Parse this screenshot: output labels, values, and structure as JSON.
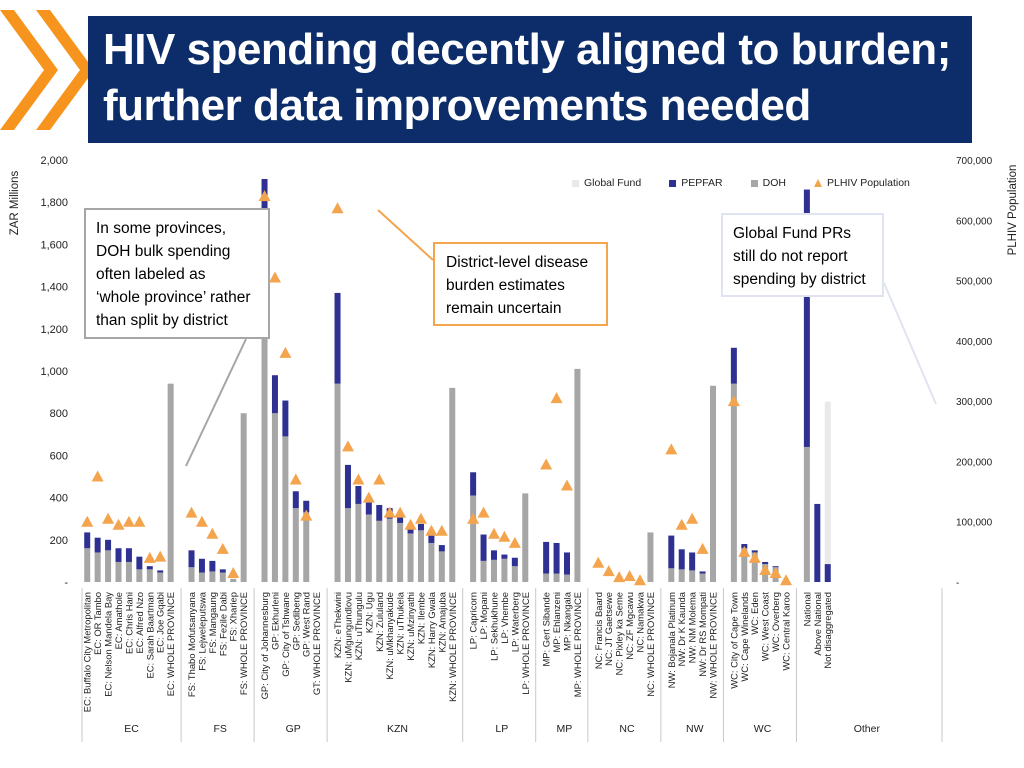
{
  "slide": {
    "title_line1": "HIV spending decently aligned to burden;",
    "title_line2": "further data improvements needed"
  },
  "colors": {
    "header": "#0c2d6a",
    "accent": "#f7941d",
    "global_fund": "#e9e9e9",
    "pepfar": "#2e3192",
    "doh": "#a6a6a6",
    "plhiv": "#f4a44d"
  },
  "callouts": {
    "doh_lines": [
      "In some provinces,",
      "DOH bulk spending",
      "often labeled as",
      "‘whole province’ rather",
      "than split by district"
    ],
    "district_lines": [
      "District-level disease",
      "burden estimates",
      "remain uncertain"
    ],
    "gf_lines": [
      "Global Fund PRs",
      "still do not report",
      "spending by district"
    ]
  },
  "chart_data": {
    "type": "bar",
    "stacked": true,
    "title": "",
    "ylabel": "ZAR Millions",
    "y2label": "PLHIV Population",
    "ylim": [
      0,
      2000
    ],
    "y2lim": [
      0,
      700000
    ],
    "yticks": [
      "-",
      "200",
      "400",
      "600",
      "800",
      "1,000",
      "1,200",
      "1,400",
      "1,600",
      "1,800",
      "2,000"
    ],
    "y2ticks": [
      "-",
      "100,000",
      "200,000",
      "300,000",
      "400,000",
      "500,000",
      "600,000",
      "700,000"
    ],
    "legend": [
      "Global Fund",
      "PEPFAR",
      "DOH",
      "PLHIV Population"
    ],
    "legend_position": "top-right",
    "groups": [
      {
        "name": "EC",
        "items": [
          {
            "label": "EC: Buffalo City Metropolitan",
            "doh": 160,
            "pepfar": 75,
            "gf": 0,
            "plhiv": 100000
          },
          {
            "label": "EC: OR Tambo",
            "doh": 140,
            "pepfar": 70,
            "gf": 0,
            "plhiv": 175000
          },
          {
            "label": "EC: Nelson Mandela Bay",
            "doh": 150,
            "pepfar": 50,
            "gf": 0,
            "plhiv": 105000
          },
          {
            "label": "EC: Amathole",
            "doh": 95,
            "pepfar": 65,
            "gf": 0,
            "plhiv": 95000
          },
          {
            "label": "EC: Chris Hani",
            "doh": 95,
            "pepfar": 65,
            "gf": 0,
            "plhiv": 100000
          },
          {
            "label": "EC: Alfred Nzo",
            "doh": 60,
            "pepfar": 60,
            "gf": 0,
            "plhiv": 100000
          },
          {
            "label": "EC: Sarah Baartman",
            "doh": 60,
            "pepfar": 15,
            "gf": 0,
            "plhiv": 40000
          },
          {
            "label": "EC: Joe Gqabi",
            "doh": 45,
            "pepfar": 10,
            "gf": 0,
            "plhiv": 42000
          },
          {
            "label": "EC: WHOLE PROVINCE",
            "doh": 940,
            "pepfar": 0,
            "gf": 0,
            "plhiv": null
          }
        ]
      },
      {
        "name": "FS",
        "items": [
          {
            "label": "FS: Thabo Mofutsanyana",
            "doh": 70,
            "pepfar": 80,
            "gf": 0,
            "plhiv": 115000
          },
          {
            "label": "FS: Lejweleputswa",
            "doh": 45,
            "pepfar": 65,
            "gf": 0,
            "plhiv": 100000
          },
          {
            "label": "FS: Mangaung",
            "doh": 50,
            "pepfar": 50,
            "gf": 0,
            "plhiv": 80000
          },
          {
            "label": "FS: Fezile Dabi",
            "doh": 45,
            "pepfar": 15,
            "gf": 0,
            "plhiv": 55000
          },
          {
            "label": "FS: Xhariep",
            "doh": 15,
            "pepfar": 0,
            "gf": 0,
            "plhiv": 15000
          },
          {
            "label": "FS: WHOLE PROVINCE",
            "doh": 800,
            "pepfar": 0,
            "gf": 0,
            "plhiv": null
          }
        ]
      },
      {
        "name": "GP",
        "items": [
          {
            "label": "GP: City of Johannesburg",
            "doh": 1460,
            "pepfar": 450,
            "gf": 0,
            "plhiv": 640000
          },
          {
            "label": "GP: Ekhurleni",
            "doh": 800,
            "pepfar": 180,
            "gf": 0,
            "plhiv": 505000
          },
          {
            "label": "GP: City of Tshwane",
            "doh": 690,
            "pepfar": 170,
            "gf": 0,
            "plhiv": 380000
          },
          {
            "label": "GP: Sedibeng",
            "doh": 350,
            "pepfar": 80,
            "gf": 0,
            "plhiv": 170000
          },
          {
            "label": "GP: West Rand",
            "doh": 330,
            "pepfar": 55,
            "gf": 0,
            "plhiv": 110000
          },
          {
            "label": "GT: WHOLE PROVINCE",
            "doh": 0,
            "pepfar": 0,
            "gf": 0,
            "plhiv": null
          }
        ]
      },
      {
        "name": "KZN",
        "items": [
          {
            "label": "KZN: eThekwini",
            "doh": 940,
            "pepfar": 430,
            "gf": 0,
            "plhiv": 620000
          },
          {
            "label": "KZN: uMgungundlovu",
            "doh": 350,
            "pepfar": 205,
            "gf": 0,
            "plhiv": 225000
          },
          {
            "label": "KZN: uThungulu",
            "doh": 370,
            "pepfar": 85,
            "gf": 0,
            "plhiv": 170000
          },
          {
            "label": "KZN: Ugu",
            "doh": 320,
            "pepfar": 65,
            "gf": 0,
            "plhiv": 140000
          },
          {
            "label": "KZN: Zululand",
            "doh": 290,
            "pepfar": 75,
            "gf": 0,
            "plhiv": 170000
          },
          {
            "label": "KZN: uMkhanyakude",
            "doh": 300,
            "pepfar": 50,
            "gf": 0,
            "plhiv": 115000
          },
          {
            "label": "KZN: uThukela",
            "doh": 280,
            "pepfar": 35,
            "gf": 0,
            "plhiv": 115000
          },
          {
            "label": "KZN: uMzinyathi",
            "doh": 230,
            "pepfar": 45,
            "gf": 0,
            "plhiv": 95000
          },
          {
            "label": "KZN: Ilembe",
            "doh": 245,
            "pepfar": 30,
            "gf": 0,
            "plhiv": 105000
          },
          {
            "label": "KZN: Harry Gwala",
            "doh": 185,
            "pepfar": 35,
            "gf": 0,
            "plhiv": 85000
          },
          {
            "label": "KZN: Amajuba",
            "doh": 145,
            "pepfar": 30,
            "gf": 0,
            "plhiv": 85000
          },
          {
            "label": "KZN: WHOLE PROVINCE",
            "doh": 920,
            "pepfar": 0,
            "gf": 0,
            "plhiv": null
          }
        ]
      },
      {
        "name": "LP",
        "items": [
          {
            "label": "LP: Capricorn",
            "doh": 410,
            "pepfar": 110,
            "gf": 0,
            "plhiv": 105000
          },
          {
            "label": "LP: Mopani",
            "doh": 100,
            "pepfar": 125,
            "gf": 0,
            "plhiv": 115000
          },
          {
            "label": "LP: Sekhukhune",
            "doh": 105,
            "pepfar": 45,
            "gf": 0,
            "plhiv": 80000
          },
          {
            "label": "LP: Vhembe",
            "doh": 110,
            "pepfar": 20,
            "gf": 0,
            "plhiv": 75000
          },
          {
            "label": "LP: Waterberg",
            "doh": 75,
            "pepfar": 40,
            "gf": 0,
            "plhiv": 65000
          },
          {
            "label": "LP: WHOLE PROVINCE",
            "doh": 420,
            "pepfar": 0,
            "gf": 0,
            "plhiv": null
          }
        ]
      },
      {
        "name": "MP",
        "items": [
          {
            "label": "MP: Gert Sibande",
            "doh": 40,
            "pepfar": 150,
            "gf": 0,
            "plhiv": 195000
          },
          {
            "label": "MP: Ehlanzeni",
            "doh": 40,
            "pepfar": 145,
            "gf": 0,
            "plhiv": 305000
          },
          {
            "label": "MP: Nkangala",
            "doh": 35,
            "pepfar": 105,
            "gf": 0,
            "plhiv": 160000
          },
          {
            "label": "MP: WHOLE PROVINCE",
            "doh": 1010,
            "pepfar": 0,
            "gf": 0,
            "plhiv": null
          }
        ]
      },
      {
        "name": "NC",
        "items": [
          {
            "label": "NC: Francis Baard",
            "doh": 0,
            "pepfar": 0,
            "gf": 0,
            "plhiv": 32000
          },
          {
            "label": "NC: JT Gaetsewe",
            "doh": 0,
            "pepfar": 0,
            "gf": 0,
            "plhiv": 18000
          },
          {
            "label": "NC: Pixley ka Seme",
            "doh": 0,
            "pepfar": 0,
            "gf": 0,
            "plhiv": 8000
          },
          {
            "label": "NC: ZF Mgcawu",
            "doh": 0,
            "pepfar": 0,
            "gf": 0,
            "plhiv": 10000
          },
          {
            "label": "NC: Namakwa",
            "doh": 0,
            "pepfar": 0,
            "gf": 0,
            "plhiv": 3000
          },
          {
            "label": "NC: WHOLE PROVINCE",
            "doh": 235,
            "pepfar": 0,
            "gf": 0,
            "plhiv": null
          }
        ]
      },
      {
        "name": "NW",
        "items": [
          {
            "label": "NW: Bojanala Platinum",
            "doh": 65,
            "pepfar": 155,
            "gf": 0,
            "plhiv": 220000
          },
          {
            "label": "NW: Dr K Kaunda",
            "doh": 60,
            "pepfar": 95,
            "gf": 0,
            "plhiv": 95000
          },
          {
            "label": "NW: NM Molema",
            "doh": 55,
            "pepfar": 85,
            "gf": 0,
            "plhiv": 105000
          },
          {
            "label": "NW: Dr RS Mompati",
            "doh": 40,
            "pepfar": 10,
            "gf": 0,
            "plhiv": 55000
          },
          {
            "label": "NW: WHOLE PROVINCE",
            "doh": 930,
            "pepfar": 0,
            "gf": 0,
            "plhiv": null
          }
        ]
      },
      {
        "name": "WC",
        "items": [
          {
            "label": "WC: City of Cape Town",
            "doh": 940,
            "pepfar": 170,
            "gf": 0,
            "plhiv": 300000
          },
          {
            "label": "WC: Cape Winelands",
            "doh": 160,
            "pepfar": 20,
            "gf": 0,
            "plhiv": 50000
          },
          {
            "label": "WC: Eden",
            "doh": 140,
            "pepfar": 10,
            "gf": 0,
            "plhiv": 40000
          },
          {
            "label": "WC: West Coast",
            "doh": 85,
            "pepfar": 10,
            "gf": 0,
            "plhiv": 20000
          },
          {
            "label": "WC: Overberg",
            "doh": 70,
            "pepfar": 5,
            "gf": 0,
            "plhiv": 15000
          },
          {
            "label": "WC: Central Karoo",
            "doh": 0,
            "pepfar": 0,
            "gf": 0,
            "plhiv": 3000
          }
        ]
      },
      {
        "name": "Other",
        "items": [
          {
            "label": "National",
            "doh": 640,
            "pepfar": 1220,
            "gf": 0,
            "plhiv": null
          },
          {
            "label": "Above National",
            "doh": 0,
            "pepfar": 370,
            "gf": 0,
            "plhiv": null
          },
          {
            "label": "Not disaggregated",
            "doh": 0,
            "pepfar": 85,
            "gf": 770,
            "plhiv": null
          }
        ]
      }
    ]
  }
}
